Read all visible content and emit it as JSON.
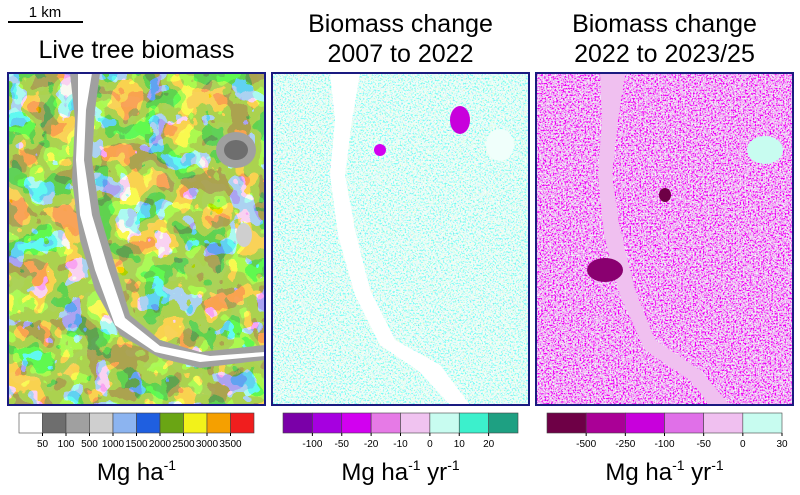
{
  "scale_bar": {
    "label": "1 km"
  },
  "panels": [
    {
      "title": [
        "Live tree biomass"
      ],
      "legend": {
        "colors": [
          "#ffffff",
          "#6e6e6e",
          "#a0a0a0",
          "#cfcfcf",
          "#8cb4f0",
          "#1f5fe0",
          "#6aa514",
          "#f2f21a",
          "#f5a000",
          "#f01e1e"
        ],
        "labels": [
          "50",
          "100",
          "500",
          "1000",
          "1500",
          "2000",
          "2500",
          "3000",
          "3500"
        ]
      },
      "unit": [
        "Mg ha",
        "-1"
      ]
    },
    {
      "title": [
        "Biomass change",
        "2007 to 2022"
      ],
      "legend": {
        "colors": [
          "#7a00a8",
          "#a600e0",
          "#d200f0",
          "#e67ae6",
          "#f0c3f0",
          "#c8fcf0",
          "#3cf0cc",
          "#1ea082"
        ],
        "labels": [
          "-100",
          "-50",
          "-20",
          "-10",
          "0",
          "10",
          "20"
        ]
      },
      "unit": [
        "Mg ha",
        "-1",
        " yr",
        "-1"
      ]
    },
    {
      "title": [
        "Biomass change",
        "2022 to 2023/25"
      ],
      "legend": {
        "colors": [
          "#6e0046",
          "#aa0096",
          "#c800dc",
          "#e070e8",
          "#f0c0f0",
          "#c8fcf0"
        ],
        "labels": [
          "-500",
          "-250",
          "-100",
          "-50",
          "0",
          "30"
        ]
      },
      "unit": [
        "Mg ha",
        "-1",
        " yr",
        "-1"
      ]
    }
  ]
}
